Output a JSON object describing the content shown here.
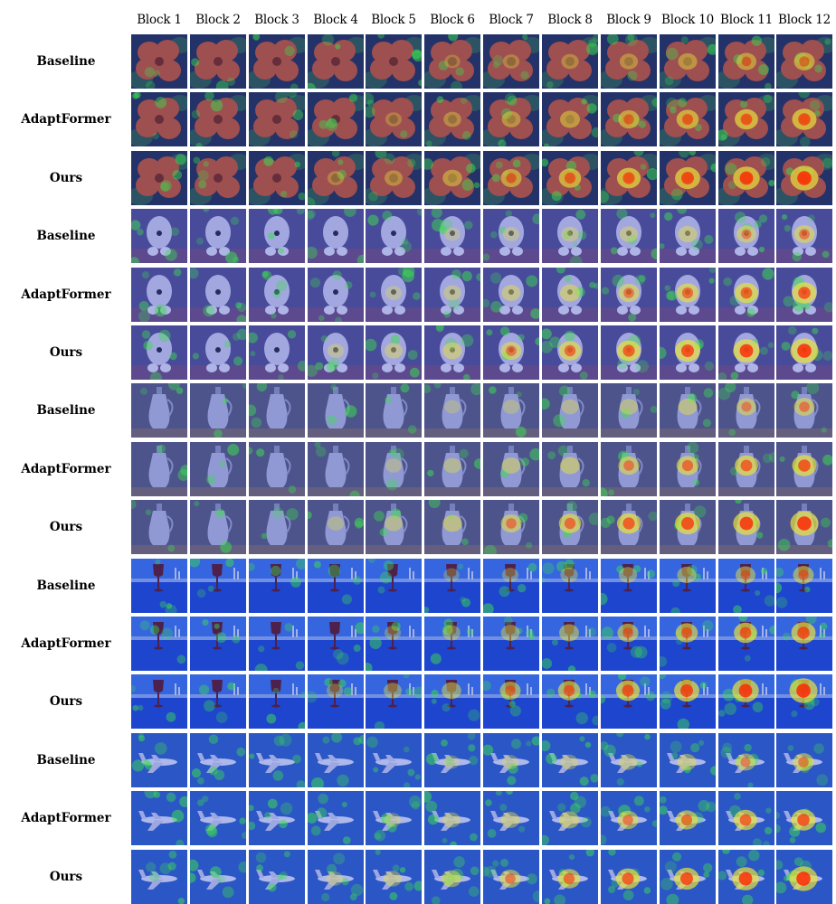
{
  "columns": [
    "Block 1",
    "Block 2",
    "Block 3",
    "Block 4",
    "Block 5",
    "Block 6",
    "Block 7",
    "Block 8",
    "Block 9",
    "Block 10",
    "Block 11",
    "Block 12"
  ],
  "groups": [
    {
      "subject": "flower",
      "rows": [
        "Baseline",
        "AdaptFormer",
        "Ours"
      ]
    },
    {
      "subject": "dog",
      "rows": [
        "Baseline",
        "AdaptFormer",
        "Ours"
      ]
    },
    {
      "subject": "jug",
      "rows": [
        "Baseline",
        "AdaptFormer",
        "Ours"
      ]
    },
    {
      "subject": "wineglass",
      "rows": [
        "Baseline",
        "AdaptFormer",
        "Ours"
      ]
    },
    {
      "subject": "airplane",
      "rows": [
        "Baseline",
        "AdaptFormer",
        "Ours"
      ]
    }
  ],
  "colors": {
    "heat_low": "#1e3cc8",
    "heat_mid": "#3cdc50",
    "heat_high": "#ff1e00"
  }
}
